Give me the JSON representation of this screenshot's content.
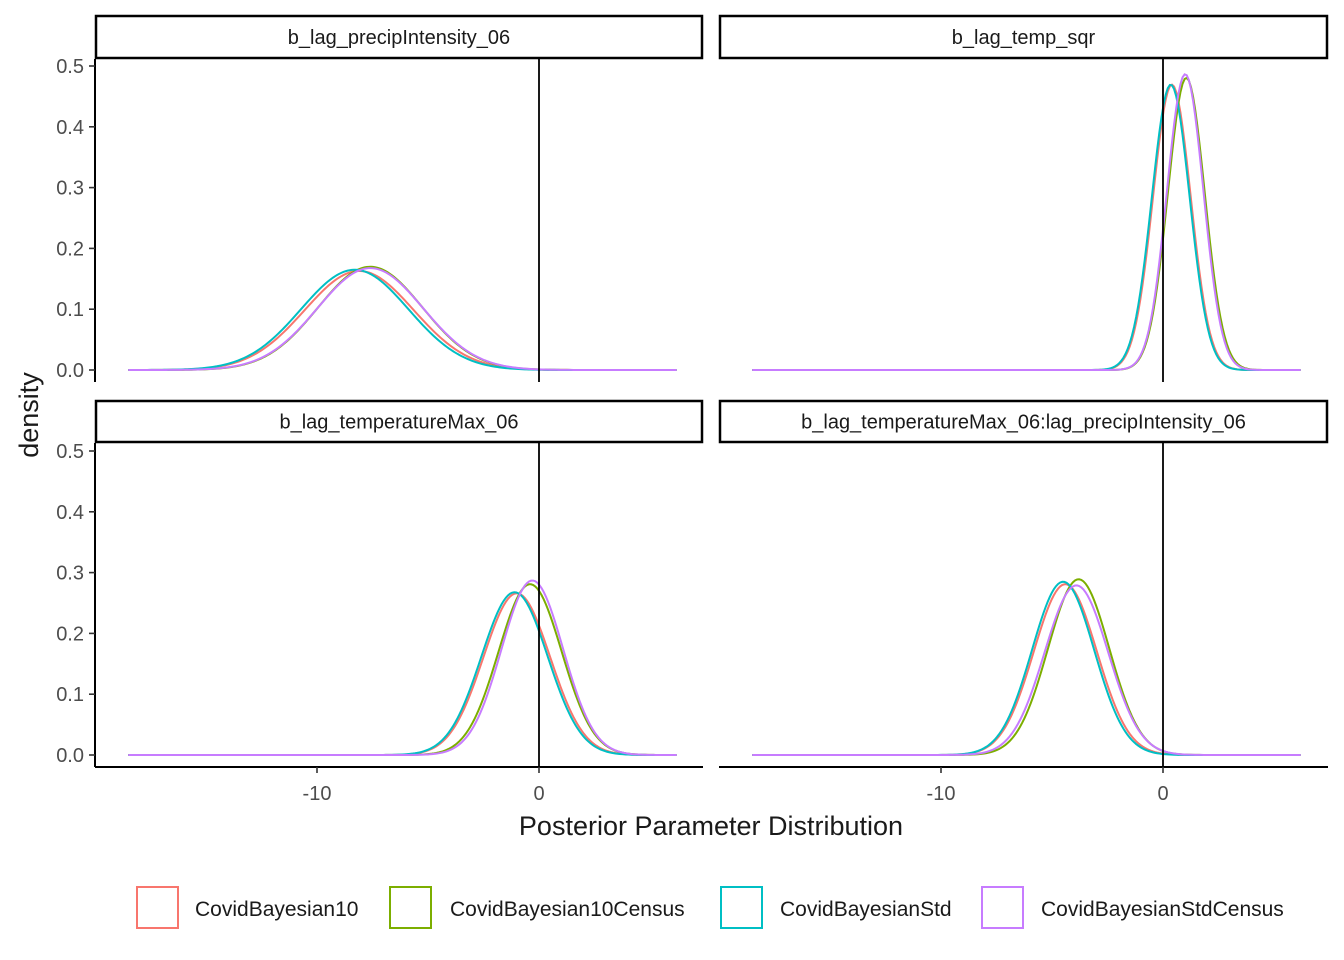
{
  "colors": {
    "CovidBayesian10": "#F8766D",
    "CovidBayesian10Census": "#7CAE00",
    "CovidBayesianStd": "#00BFC4",
    "CovidBayesianStdCensus": "#C77CFF",
    "axis": "#000000",
    "tick_label": "#4d4d4d"
  },
  "chart_data": {
    "type": "line",
    "subtype": "faceted density",
    "xlabel": "Posterior Parameter Distribution",
    "ylabel": "density",
    "xlim": [
      -19,
      6.5
    ],
    "ylim": [
      0,
      0.52
    ],
    "x_ticks": [
      -10,
      0
    ],
    "y_ticks": [
      0.0,
      0.1,
      0.2,
      0.3,
      0.4,
      0.5
    ],
    "y_tick_labels": [
      "0.0",
      "0.1",
      "0.2",
      "0.3",
      "0.4",
      "0.5"
    ],
    "x_tick_labels": [
      "-10",
      "0"
    ],
    "reference_line_x": 0,
    "grid": false,
    "legend_position": "bottom",
    "series_names": [
      "CovidBayesian10",
      "CovidBayesian10Census",
      "CovidBayesianStd",
      "CovidBayesianStdCensus"
    ],
    "density_range": [
      -18.5,
      6.2
    ],
    "panels": [
      {
        "title": "b_lag_precipIntensity_06",
        "series": [
          {
            "name": "CovidBayesian10",
            "mean": -8.1,
            "sd": 2.45
          },
          {
            "name": "CovidBayesian10Census",
            "mean": -7.6,
            "sd": 2.35
          },
          {
            "name": "CovidBayesianStd",
            "mean": -8.3,
            "sd": 2.42
          },
          {
            "name": "CovidBayesianStdCensus",
            "mean": -7.6,
            "sd": 2.38
          }
        ]
      },
      {
        "title": "b_lag_temp_sqr",
        "series": [
          {
            "name": "CovidBayesian10",
            "mean": 0.4,
            "sd": 0.85
          },
          {
            "name": "CovidBayesian10Census",
            "mean": 1.05,
            "sd": 0.83
          },
          {
            "name": "CovidBayesianStd",
            "mean": 0.35,
            "sd": 0.85
          },
          {
            "name": "CovidBayesianStdCensus",
            "mean": 1.0,
            "sd": 0.82
          }
        ]
      },
      {
        "title": "b_lag_temperatureMax_06",
        "series": [
          {
            "name": "CovidBayesian10",
            "mean": -1.0,
            "sd": 1.5
          },
          {
            "name": "CovidBayesian10Census",
            "mean": -0.4,
            "sd": 1.42
          },
          {
            "name": "CovidBayesianStd",
            "mean": -1.1,
            "sd": 1.49
          },
          {
            "name": "CovidBayesianStdCensus",
            "mean": -0.3,
            "sd": 1.39
          }
        ]
      },
      {
        "title": "b_lag_temperatureMax_06:lag_precipIntensity_06",
        "series": [
          {
            "name": "CovidBayesian10",
            "mean": -4.4,
            "sd": 1.42
          },
          {
            "name": "CovidBayesian10Census",
            "mean": -3.8,
            "sd": 1.38
          },
          {
            "name": "CovidBayesianStd",
            "mean": -4.5,
            "sd": 1.4
          },
          {
            "name": "CovidBayesianStdCensus",
            "mean": -3.9,
            "sd": 1.43
          }
        ]
      }
    ]
  }
}
